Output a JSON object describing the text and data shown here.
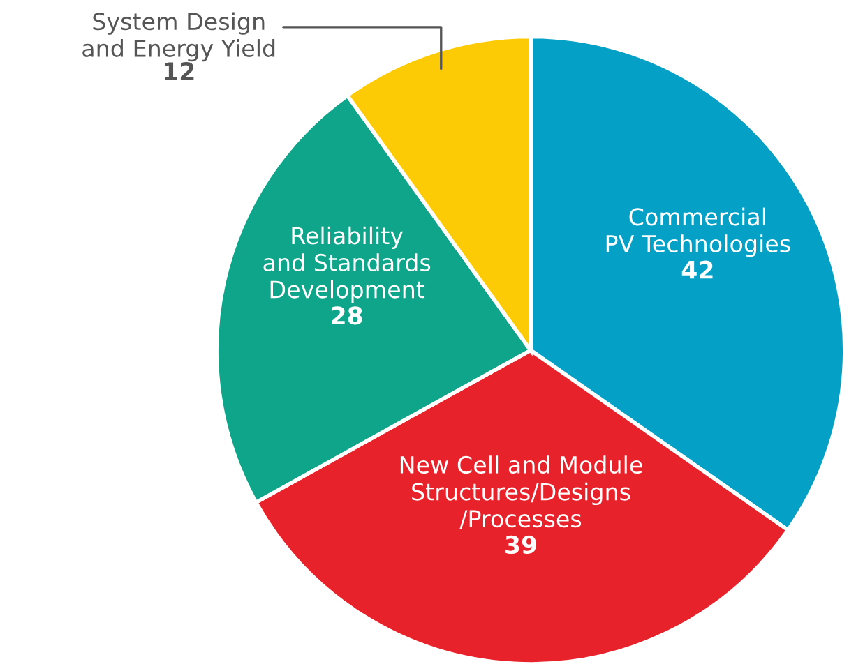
{
  "chart_data": {
    "type": "pie",
    "categories": [
      "Commercial\nPV Technologies",
      "New Cell and Module\nStructures/Designs\n/Processes",
      "Reliability\nand Standards\nDevelopment",
      "System Design\nand Energy Yield"
    ],
    "values": [
      42,
      39,
      28,
      12
    ],
    "colors": [
      "#05a0c6",
      "#e8222a",
      "#0ea58a",
      "#fccb05"
    ],
    "data_labels": true
  }
}
